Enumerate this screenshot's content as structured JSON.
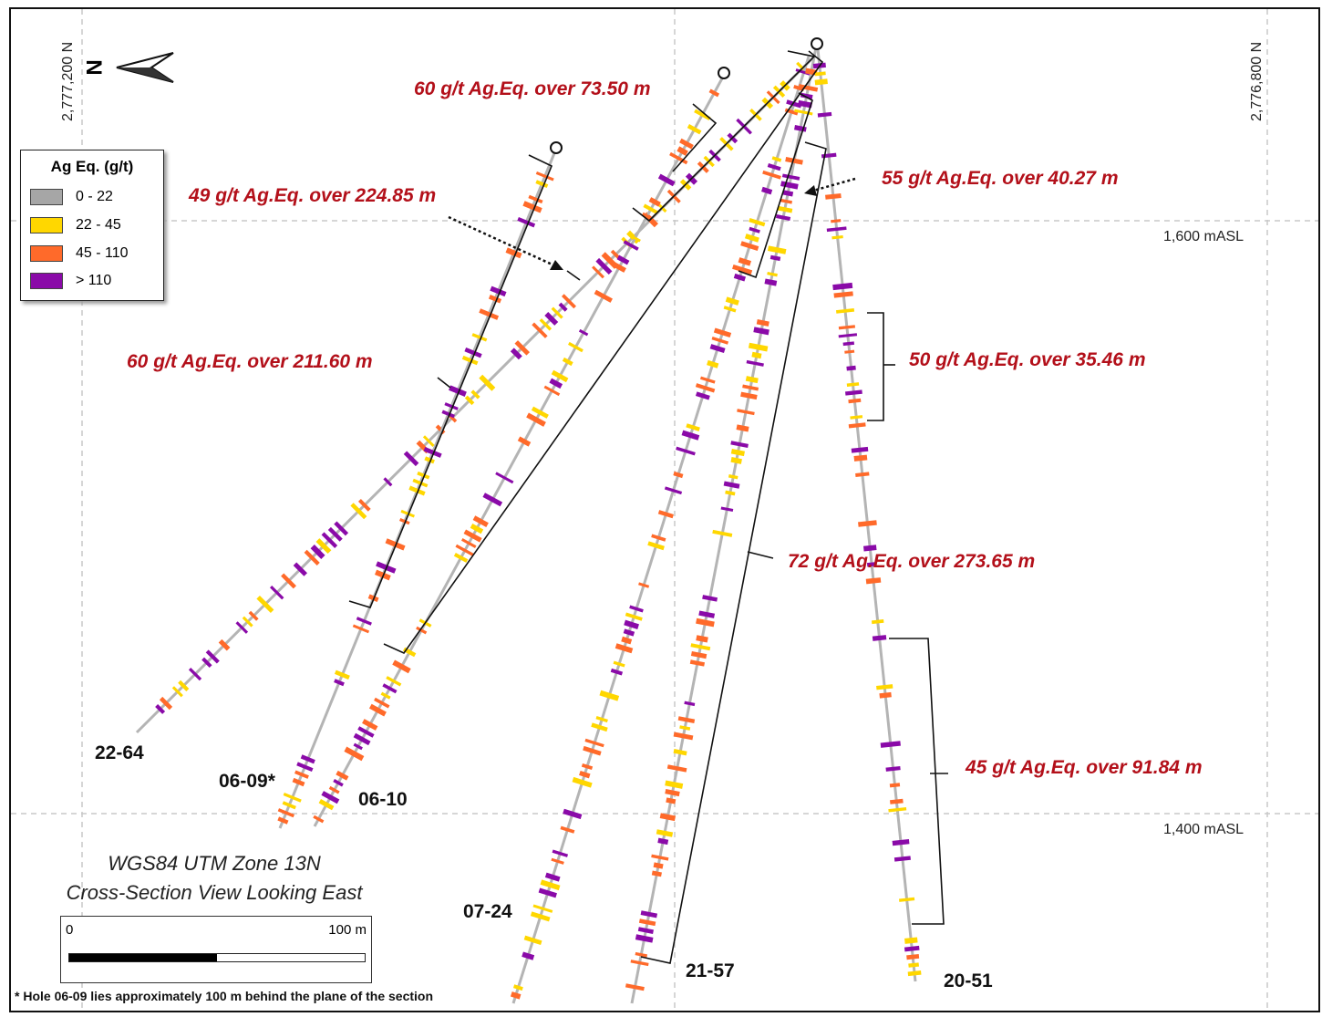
{
  "northing_labels": [
    "2,777,200 N",
    "2,776,800 N"
  ],
  "elevation_labels": [
    "1,600 mASL",
    "1,400 mASL"
  ],
  "north_arrow": {
    "label": "N",
    "icon": "north-arrow-icon"
  },
  "legend": {
    "title": "Ag Eq. (g/t)",
    "items": [
      {
        "label": "0 - 22",
        "color": "#a6a6a6"
      },
      {
        "label": "22 - 45",
        "color": "#ffd700"
      },
      {
        "label": "45 - 110",
        "color": "#ff6a2a"
      },
      {
        "label": "> 110",
        "color": "#8a0aa8"
      }
    ]
  },
  "intercepts": [
    "60 g/t Ag.Eq. over 73.50 m",
    "49 g/t Ag.Eq. over 224.85 m",
    "55 g/t Ag.Eq. over 40.27 m",
    "60 g/t Ag.Eq. over 211.60 m",
    "50 g/t Ag.Eq. over 35.46 m",
    "72 g/t Ag.Eq. over 273.65 m",
    "45 g/t Ag.Eq. over 91.84 m"
  ],
  "holes": [
    "22-64",
    "06-09*",
    "06-10",
    "07-24",
    "21-57",
    "20-51"
  ],
  "projection": {
    "line1": "WGS84 UTM Zone 13N",
    "line2": "Cross-Section View Looking East"
  },
  "scale": {
    "start": "0",
    "end": "100 m"
  },
  "footnote": "* Hole 06-09 lies approximately 100 m behind the plane of the section"
}
